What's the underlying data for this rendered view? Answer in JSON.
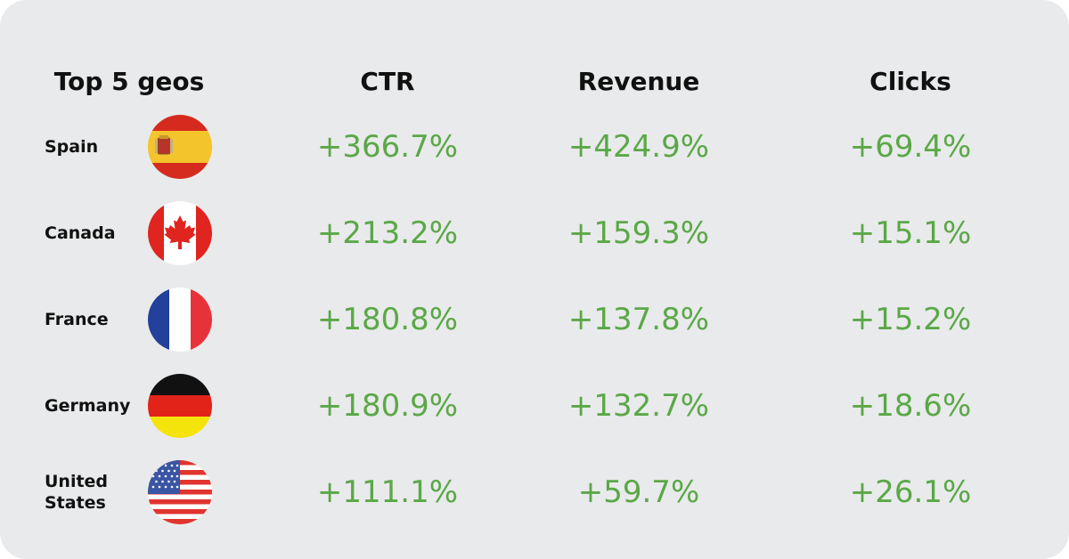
{
  "headers": {
    "geo": "Top 5 geos",
    "ctr": "CTR",
    "revenue": "Revenue",
    "clicks": "Clicks"
  },
  "rows": [
    {
      "country": "Spain",
      "flag": "spain-flag-icon",
      "ctr": "+366.7%",
      "revenue": "+424.9%",
      "clicks": "+69.4%"
    },
    {
      "country": "Canada",
      "flag": "canada-flag-icon",
      "ctr": "+213.2%",
      "revenue": "+159.3%",
      "clicks": "+15.1%"
    },
    {
      "country": "France",
      "flag": "france-flag-icon",
      "ctr": "+180.8%",
      "revenue": "+137.8%",
      "clicks": "+15.2%"
    },
    {
      "country": "Germany",
      "flag": "germany-flag-icon",
      "ctr": "+180.9%",
      "revenue": "+132.7%",
      "clicks": "+18.6%"
    },
    {
      "country": "United\nStates",
      "flag": "usa-flag-icon",
      "ctr": "+111.1%",
      "revenue": "+59.7%",
      "clicks": "+26.1%"
    }
  ],
  "colors": {
    "background": "#e9eaeb",
    "value_green": "#5aa847",
    "text": "#111111"
  }
}
